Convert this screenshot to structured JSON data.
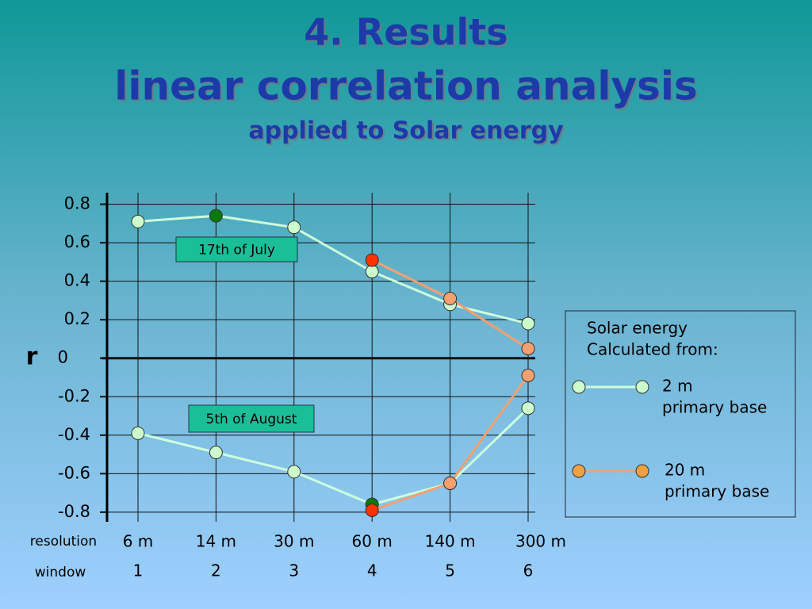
{
  "chart_data": {
    "type": "line",
    "title": [
      "4. Results",
      "linear correlation analysis"
    ],
    "subtitle": "applied to Solar energy",
    "y_label": "r",
    "row_labels": [
      "resolution",
      "window"
    ],
    "resolutions": [
      "6 m",
      "14 m",
      "30 m",
      "60 m",
      "140 m",
      "300 m"
    ],
    "categories": [
      "1",
      "2",
      "3",
      "4",
      "5",
      "6"
    ],
    "ylim": [
      -0.85,
      0.86
    ],
    "yticks": [
      0.8,
      0.6,
      0.4,
      0.2,
      0,
      -0.2,
      -0.4,
      -0.6,
      -0.8
    ],
    "grid": true,
    "legend": {
      "title": [
        "Solar energy",
        "Calculated from:"
      ],
      "entries": [
        {
          "label": [
            "2 m",
            "primary base"
          ],
          "line_color": "#ccffdd",
          "marker_color": "#ccffcc"
        },
        {
          "label": [
            "20 m",
            "primary base"
          ],
          "line_color": "#f4a070",
          "marker_color": "#f0a040"
        }
      ]
    },
    "dates": [
      {
        "label": "17th of July",
        "series": [
          {
            "values": [
              0.71,
              0.74,
              0.68,
              0.45,
              0.28,
              0.18
            ],
            "marker_colors": [
              "#ccffcc",
              "#0a7a0a",
              "#ccffcc",
              "#ccffcc",
              "#ccffcc",
              "#ccffcc"
            ]
          },
          {
            "values": [
              null,
              null,
              null,
              0.51,
              0.31,
              0.05
            ],
            "marker_colors": [
              null,
              null,
              null,
              "#ff3300",
              "#f4a070",
              "#f4a070"
            ]
          }
        ]
      },
      {
        "label": "5th of August",
        "series": [
          {
            "values": [
              -0.39,
              -0.49,
              -0.59,
              -0.76,
              -0.65,
              -0.26
            ],
            "marker_colors": [
              "#ccffcc",
              "#ccffcc",
              "#ccffcc",
              "#0a7a0a",
              "#ccffcc",
              "#ccffcc"
            ]
          },
          {
            "values": [
              null,
              null,
              null,
              -0.79,
              -0.65,
              -0.09
            ],
            "marker_colors": [
              null,
              null,
              null,
              "#ff3300",
              "#f4a070",
              "#f4a070"
            ]
          }
        ]
      }
    ]
  }
}
